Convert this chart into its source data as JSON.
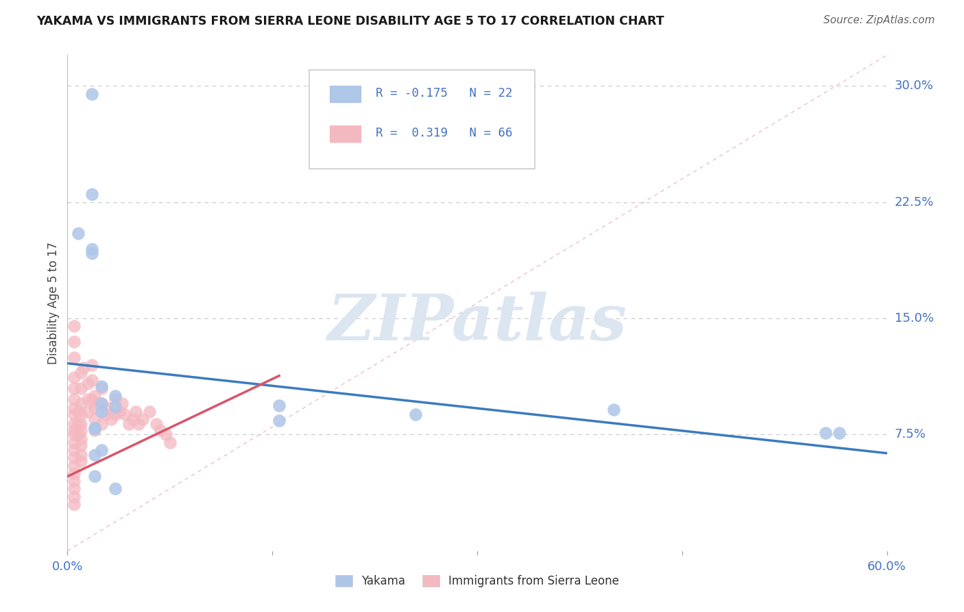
{
  "title": "YAKAMA VS IMMIGRANTS FROM SIERRA LEONE DISABILITY AGE 5 TO 17 CORRELATION CHART",
  "source": "Source: ZipAtlas.com",
  "ylabel": "Disability Age 5 to 17",
  "xlim": [
    0.0,
    0.6
  ],
  "ylim": [
    0.0,
    0.32
  ],
  "ytick_positions": [
    0.075,
    0.15,
    0.225,
    0.3
  ],
  "ytick_labels": [
    "7.5%",
    "15.0%",
    "22.5%",
    "30.0%"
  ],
  "grid_color": "#c8c8c8",
  "background_color": "#ffffff",
  "yakama_color": "#aec6e8",
  "sierra_leone_color": "#f4b8c1",
  "yakama_line_color": "#3b7bbf",
  "sierra_leone_line_color": "#d9546a",
  "text_color": "#4472c4",
  "watermark": "ZIPatlas",
  "watermark_color": "#dce6f1",
  "yakama_x": [
    0.018,
    0.018,
    0.018,
    0.008,
    0.018,
    0.025,
    0.035,
    0.025,
    0.035,
    0.025,
    0.155,
    0.255,
    0.4,
    0.565,
    0.555,
    0.02,
    0.02,
    0.025,
    0.02,
    0.02,
    0.155,
    0.035
  ],
  "yakama_y": [
    0.295,
    0.195,
    0.23,
    0.205,
    0.192,
    0.106,
    0.1,
    0.095,
    0.093,
    0.09,
    0.084,
    0.088,
    0.091,
    0.076,
    0.076,
    0.079,
    0.079,
    0.065,
    0.062,
    0.048,
    0.094,
    0.04
  ],
  "sierra_leone_x": [
    0.005,
    0.005,
    0.005,
    0.005,
    0.005,
    0.005,
    0.005,
    0.005,
    0.005,
    0.005,
    0.005,
    0.005,
    0.005,
    0.005,
    0.005,
    0.005,
    0.005,
    0.005,
    0.005,
    0.005,
    0.008,
    0.008,
    0.008,
    0.01,
    0.01,
    0.01,
    0.01,
    0.01,
    0.01,
    0.01,
    0.01,
    0.01,
    0.01,
    0.012,
    0.015,
    0.015,
    0.015,
    0.018,
    0.018,
    0.018,
    0.02,
    0.02,
    0.02,
    0.02,
    0.022,
    0.025,
    0.025,
    0.025,
    0.028,
    0.03,
    0.032,
    0.035,
    0.035,
    0.038,
    0.04,
    0.042,
    0.045,
    0.048,
    0.05,
    0.052,
    0.055,
    0.06,
    0.065,
    0.068,
    0.072,
    0.075
  ],
  "sierra_leone_y": [
    0.145,
    0.135,
    0.125,
    0.112,
    0.105,
    0.098,
    0.092,
    0.088,
    0.082,
    0.078,
    0.075,
    0.07,
    0.065,
    0.06,
    0.055,
    0.05,
    0.045,
    0.04,
    0.035,
    0.03,
    0.09,
    0.082,
    0.075,
    0.115,
    0.105,
    0.095,
    0.088,
    0.082,
    0.078,
    0.072,
    0.068,
    0.062,
    0.058,
    0.118,
    0.108,
    0.098,
    0.09,
    0.12,
    0.11,
    0.098,
    0.1,
    0.092,
    0.085,
    0.078,
    0.095,
    0.105,
    0.095,
    0.082,
    0.088,
    0.092,
    0.085,
    0.098,
    0.088,
    0.09,
    0.095,
    0.088,
    0.082,
    0.085,
    0.09,
    0.082,
    0.085,
    0.09,
    0.082,
    0.078,
    0.075,
    0.07
  ]
}
